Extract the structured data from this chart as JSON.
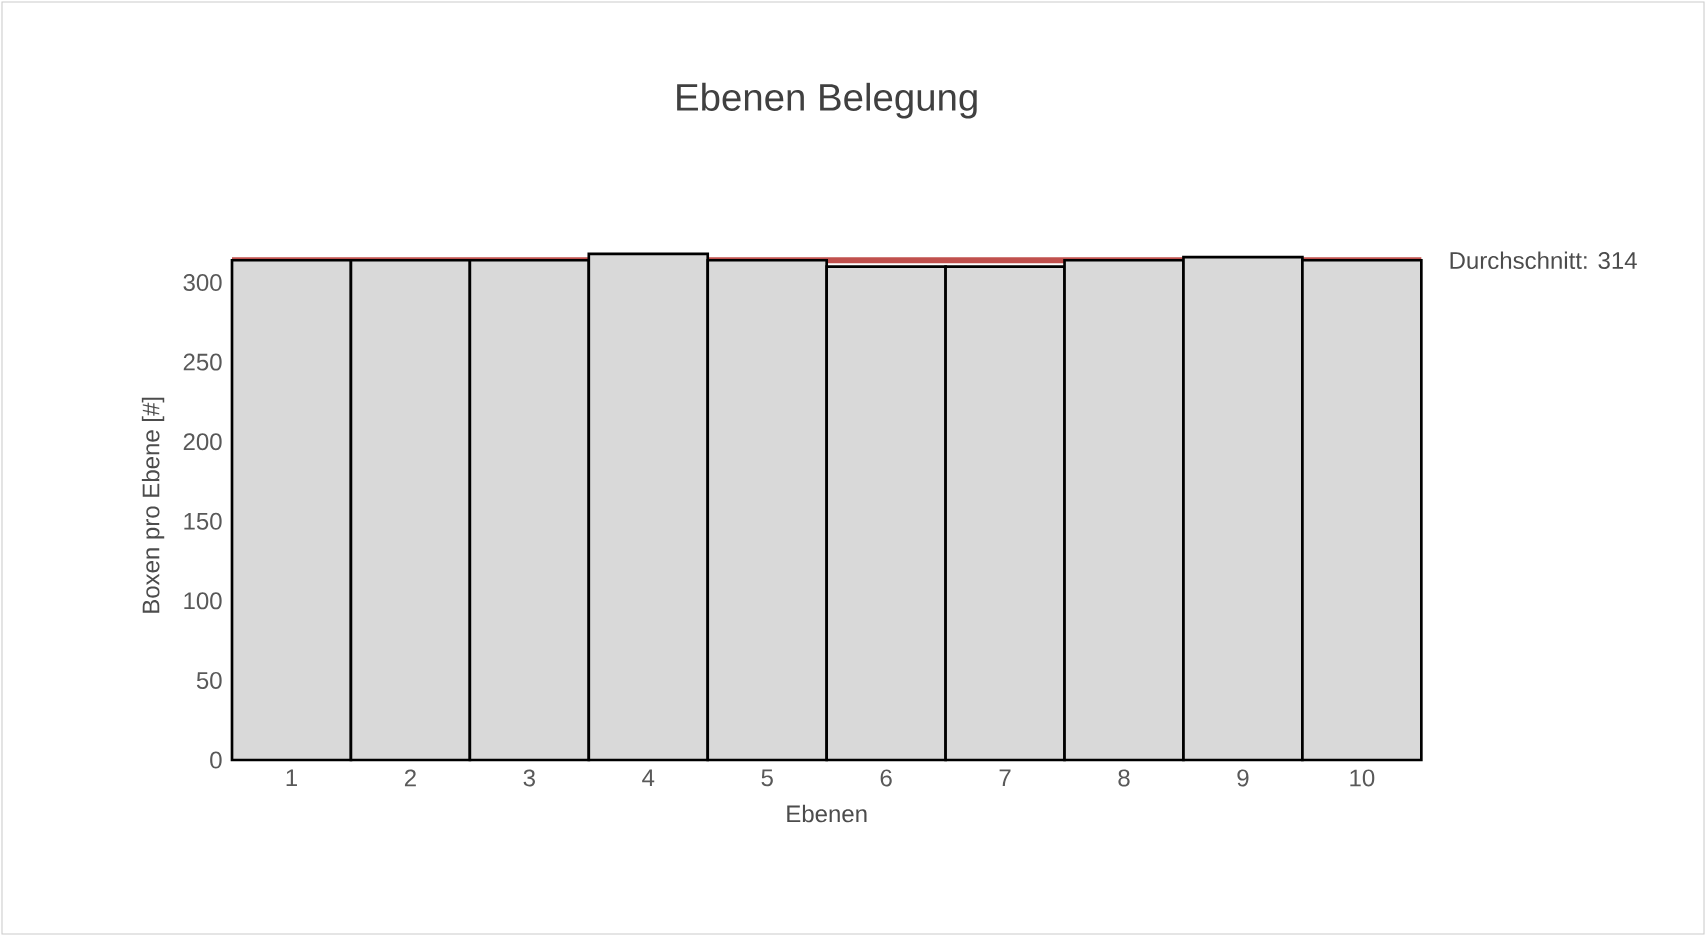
{
  "chart_data": {
    "type": "bar",
    "title": "Ebenen Belegung",
    "xlabel": "Ebenen",
    "ylabel": "Boxen pro Ebene [#]",
    "categories": [
      "1",
      "2",
      "3",
      "4",
      "5",
      "6",
      "7",
      "8",
      "9",
      "10"
    ],
    "values": [
      314,
      314,
      314,
      318,
      314,
      310,
      310,
      314,
      316,
      314
    ],
    "color": "#d9d9d9",
    "ylim": [
      0,
      320
    ],
    "yticks": [
      0,
      50,
      100,
      150,
      200,
      250,
      300
    ],
    "ref_lines": [
      {
        "axis": "y",
        "value": 314,
        "label": "Durchschnitt: 314",
        "color": "#c0504d"
      }
    ]
  }
}
